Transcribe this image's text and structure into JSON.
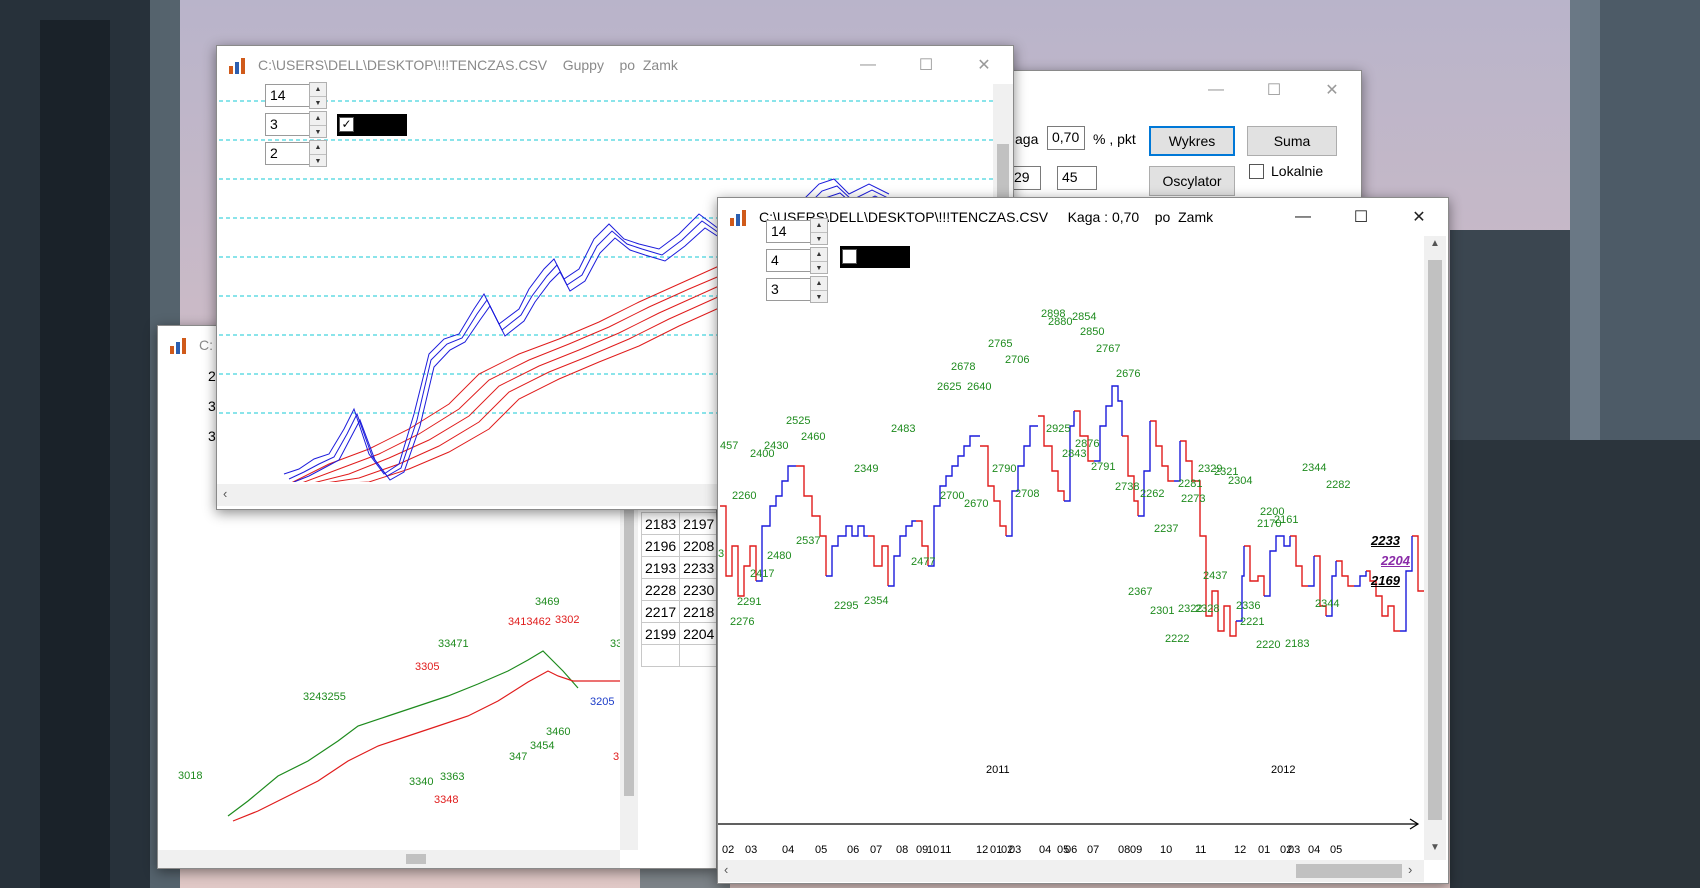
{
  "window_main": {
    "title": "C:\\USERS\\DELL\\DESKTOP\\!!!TENCZAS.CSV    Guppy    po  Zamk",
    "spin1": "14",
    "spin2": "3",
    "spin3": "2",
    "checkbox": "✓"
  },
  "window_bottom_left": {
    "title": "C:",
    "spin_values": [
      "2",
      "3",
      "3"
    ],
    "table": [
      [
        "2183",
        "2197"
      ],
      [
        "2196",
        "2208"
      ],
      [
        "2193",
        "2233"
      ],
      [
        "2228",
        "2230"
      ],
      [
        "2217",
        "2218"
      ],
      [
        "2199",
        "2204"
      ]
    ],
    "green_labels": [
      "3469",
      "33471",
      "3243255",
      "3460",
      "3454",
      "3018",
      "3340",
      "3363",
      "33"
    ],
    "red_labels": [
      "3305",
      "3302",
      "3348",
      "3205",
      "3"
    ],
    "red_partial_label": "3413462",
    "green_partial_label": "347"
  },
  "window_mid": {
    "label_kaga": "aga",
    "kaga_value": "0,70",
    "unit_label": "% , pkt",
    "btn_wykres": "Wykres",
    "btn_suma": "Suma",
    "btn_oscylator": "Oscylator",
    "field_a": "29",
    "field_b": "45",
    "chk_lokalnie": "Lokalnie"
  },
  "window_kaga": {
    "title": "C:\\USERS\\DELL\\DESKTOP\\!!!TENCZAS.CSV     Kaga : 0,70    po  Zamk",
    "spin1": "14",
    "spin2": "4",
    "spin3": "3",
    "labels": [
      "2898",
      "2880",
      "2854",
      "2850",
      "2765",
      "2767",
      "2706",
      "2678",
      "2676",
      "2625",
      "2640",
      "2483",
      "2525",
      "2460",
      "457",
      "2430",
      "2400",
      "2349",
      "2925",
      "2876",
      "2843",
      "2791",
      "2790",
      "2738",
      "2262",
      "2281",
      "2273",
      "2329",
      "2321",
      "2304",
      "2344",
      "2282",
      "2260",
      "2700",
      "2670",
      "2708",
      "2237",
      "2200",
      "2170",
      "2161",
      "2537",
      "2480",
      "2417",
      "2477",
      "2437",
      "2291",
      "2295",
      "2354",
      "2367",
      "2336",
      "2344",
      "2276",
      "2301",
      "2322",
      "2328",
      "2221",
      "2222",
      "2220",
      "2183",
      "3"
    ],
    "last_values": [
      "2233",
      "2204",
      "2169"
    ],
    "x_months": [
      "02",
      "03",
      "04",
      "05",
      "06",
      "07",
      "08",
      "09",
      "10",
      "11",
      "12",
      "01",
      "02",
      "03",
      "04",
      "05",
      "06",
      "07",
      "08",
      "09",
      "10",
      "11",
      "12",
      "01",
      "02",
      "03",
      "04",
      "05"
    ],
    "years": [
      "2011",
      "2012"
    ]
  },
  "colors": {
    "blue_series": "#1c1cdc",
    "red_series": "#e01c1c",
    "green_series": "#1e8b1e",
    "label_green": "#1e8b1e",
    "purple": "#8a2aa8",
    "grid_cyan": "#15c9d6"
  }
}
